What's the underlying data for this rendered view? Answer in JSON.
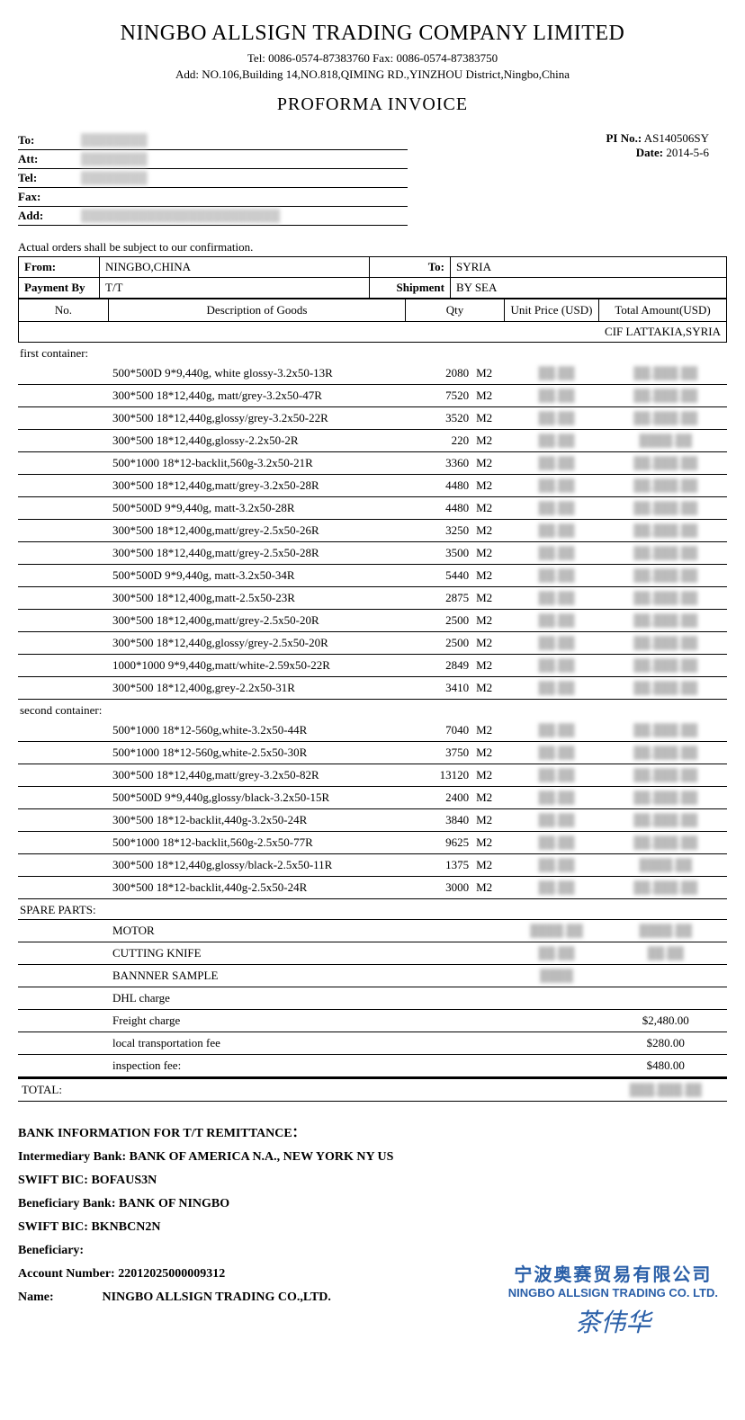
{
  "company": {
    "name": "NINGBO ALLSIGN TRADING COMPANY LIMITED",
    "tel_fax": "Tel: 0086-0574-87383760 Fax: 0086-0574-87383750",
    "address": "Add: NO.106,Building 14,NO.818,QIMING RD.,YINZHOU District,Ningbo,China"
  },
  "doc_title": "PROFORMA  INVOICE",
  "recipient": {
    "labels": {
      "to": "To:",
      "att": "Att:",
      "tel": "Tel:",
      "fax": "Fax:",
      "add": "Add:"
    },
    "to": "████████",
    "att": "████████",
    "tel": "████████",
    "fax": "",
    "add": "████████████████████████"
  },
  "meta": {
    "pi_no_label": "PI No.:",
    "pi_no": "AS140506SY",
    "date_label": "Date:",
    "date": "2014-5-6"
  },
  "confirm_note": "Actual orders shall be subject to our confirmation.",
  "info": {
    "from_label": "From:",
    "from": "NINGBO,CHINA",
    "to_label": "To:",
    "to": "SYRIA",
    "payment_label": "Payment By",
    "payment": "T/T",
    "shipment_label": "Shipment",
    "shipment": "BY SEA"
  },
  "columns": {
    "no": "No.",
    "desc": "Description of Goods",
    "qty": "Qty",
    "unit_price": "Unit Price (USD)",
    "total": "Total Amount(USD)"
  },
  "cif": "CIF LATTAKIA,SYRIA",
  "sections": {
    "first": "first container:",
    "second": "second container:",
    "spare": "SPARE PARTS:"
  },
  "first_container": [
    {
      "desc": "500*500D 9*9,440g, white glossy-3.2x50-13R",
      "qty": "2080",
      "unit": "M2",
      "price": "██.██",
      "total": "██,███.██"
    },
    {
      "desc": "300*500 18*12,440g, matt/grey-3.2x50-47R",
      "qty": "7520",
      "unit": "M2",
      "price": "██.██",
      "total": "██,███.██"
    },
    {
      "desc": "300*500 18*12,440g,glossy/grey-3.2x50-22R",
      "qty": "3520",
      "unit": "M2",
      "price": "██.██",
      "total": "██,███.██"
    },
    {
      "desc": "300*500 18*12,440g,glossy-2.2x50-2R",
      "qty": "220",
      "unit": "M2",
      "price": "██.██",
      "total": "████.██"
    },
    {
      "desc": "500*1000 18*12-backlit,560g-3.2x50-21R",
      "qty": "3360",
      "unit": "M2",
      "price": "██.██",
      "total": "██,███.██"
    },
    {
      "desc": "300*500 18*12,440g,matt/grey-3.2x50-28R",
      "qty": "4480",
      "unit": "M2",
      "price": "██.██",
      "total": "██,███.██"
    },
    {
      "desc": "500*500D 9*9,440g, matt-3.2x50-28R",
      "qty": "4480",
      "unit": "M2",
      "price": "██.██",
      "total": "██,███.██"
    },
    {
      "desc": "300*500 18*12,400g,matt/grey-2.5x50-26R",
      "qty": "3250",
      "unit": "M2",
      "price": "██.██",
      "total": "██,███.██"
    },
    {
      "desc": "300*500 18*12,440g,matt/grey-2.5x50-28R",
      "qty": "3500",
      "unit": "M2",
      "price": "██.██",
      "total": "██,███.██"
    },
    {
      "desc": "500*500D 9*9,440g, matt-3.2x50-34R",
      "qty": "5440",
      "unit": "M2",
      "price": "██.██",
      "total": "██,███.██"
    },
    {
      "desc": "300*500 18*12,400g,matt-2.5x50-23R",
      "qty": "2875",
      "unit": "M2",
      "price": "██.██",
      "total": "██,███.██"
    },
    {
      "desc": "300*500 18*12,400g,matt/grey-2.5x50-20R",
      "qty": "2500",
      "unit": "M2",
      "price": "██.██",
      "total": "██,███.██"
    },
    {
      "desc": "300*500 18*12,440g,glossy/grey-2.5x50-20R",
      "qty": "2500",
      "unit": "M2",
      "price": "██.██",
      "total": "██,███.██"
    },
    {
      "desc": "1000*1000 9*9,440g,matt/white-2.59x50-22R",
      "qty": "2849",
      "unit": "M2",
      "price": "██.██",
      "total": "██,███.██"
    },
    {
      "desc": "300*500 18*12,400g,grey-2.2x50-31R",
      "qty": "3410",
      "unit": "M2",
      "price": "██.██",
      "total": "██,███.██"
    }
  ],
  "second_container": [
    {
      "desc": "500*1000 18*12-560g,white-3.2x50-44R",
      "qty": "7040",
      "unit": "M2",
      "price": "██.██",
      "total": "██,███.██"
    },
    {
      "desc": "500*1000 18*12-560g,white-2.5x50-30R",
      "qty": "3750",
      "unit": "M2",
      "price": "██.██",
      "total": "██,███.██"
    },
    {
      "desc": "300*500 18*12,440g,matt/grey-3.2x50-82R",
      "qty": "13120",
      "unit": "M2",
      "price": "██.██",
      "total": "██,███.██"
    },
    {
      "desc": "500*500D 9*9,440g,glossy/black-3.2x50-15R",
      "qty": "2400",
      "unit": "M2",
      "price": "██.██",
      "total": "██,███.██"
    },
    {
      "desc": "300*500 18*12-backlit,440g-3.2x50-24R",
      "qty": "3840",
      "unit": "M2",
      "price": "██.██",
      "total": "██,███.██"
    },
    {
      "desc": "500*1000 18*12-backlit,560g-2.5x50-77R",
      "qty": "9625",
      "unit": "M2",
      "price": "██.██",
      "total": "██,███.██"
    },
    {
      "desc": "300*500 18*12,440g,glossy/black-2.5x50-11R",
      "qty": "1375",
      "unit": "M2",
      "price": "██.██",
      "total": "████.██"
    },
    {
      "desc": "300*500 18*12-backlit,440g-2.5x50-24R",
      "qty": "3000",
      "unit": "M2",
      "price": "██.██",
      "total": "██,███.██"
    }
  ],
  "spare_parts": [
    {
      "desc": "MOTOR",
      "price": "████.██",
      "total": "████.██"
    },
    {
      "desc": "CUTTING KNIFE",
      "price": "██.██",
      "total": "██.██"
    },
    {
      "desc": "BANNNER SAMPLE",
      "price": "████",
      "total": ""
    }
  ],
  "fees": [
    {
      "desc": "DHL charge",
      "total": ""
    },
    {
      "desc": "Freight charge",
      "total": "$2,480.00"
    },
    {
      "desc": "local transportation fee",
      "total": "$280.00"
    },
    {
      "desc": "inspection fee:",
      "total": "$480.00",
      "red": true
    }
  ],
  "total_label": "TOTAL:",
  "total_value": "███,███.██",
  "bank": {
    "heading": "BANK INFORMATION FOR T/T REMITTANCE：",
    "intermediary_label": "Intermediary Bank:",
    "intermediary": "BANK OF AMERICA N.A., NEW YORK NY US",
    "swift_label": "SWIFT BIC:",
    "swift1": "BOFAUS3N",
    "beneficiary_bank_label": "Beneficiary Bank:",
    "beneficiary_bank": "BANK OF NINGBO",
    "swift2": "BKNBCN2N",
    "beneficiary_label": "Beneficiary:",
    "account_label": "Account Number:",
    "account": "22012025000009312",
    "name_label": "Name:",
    "name": "NINGBO ALLSIGN TRADING CO.,LTD."
  },
  "stamp": {
    "cn": "宁波奥赛贸易有限公司",
    "en": "NINGBO ALLSIGN TRADING CO. LTD.",
    "sig": "茶伟华"
  }
}
